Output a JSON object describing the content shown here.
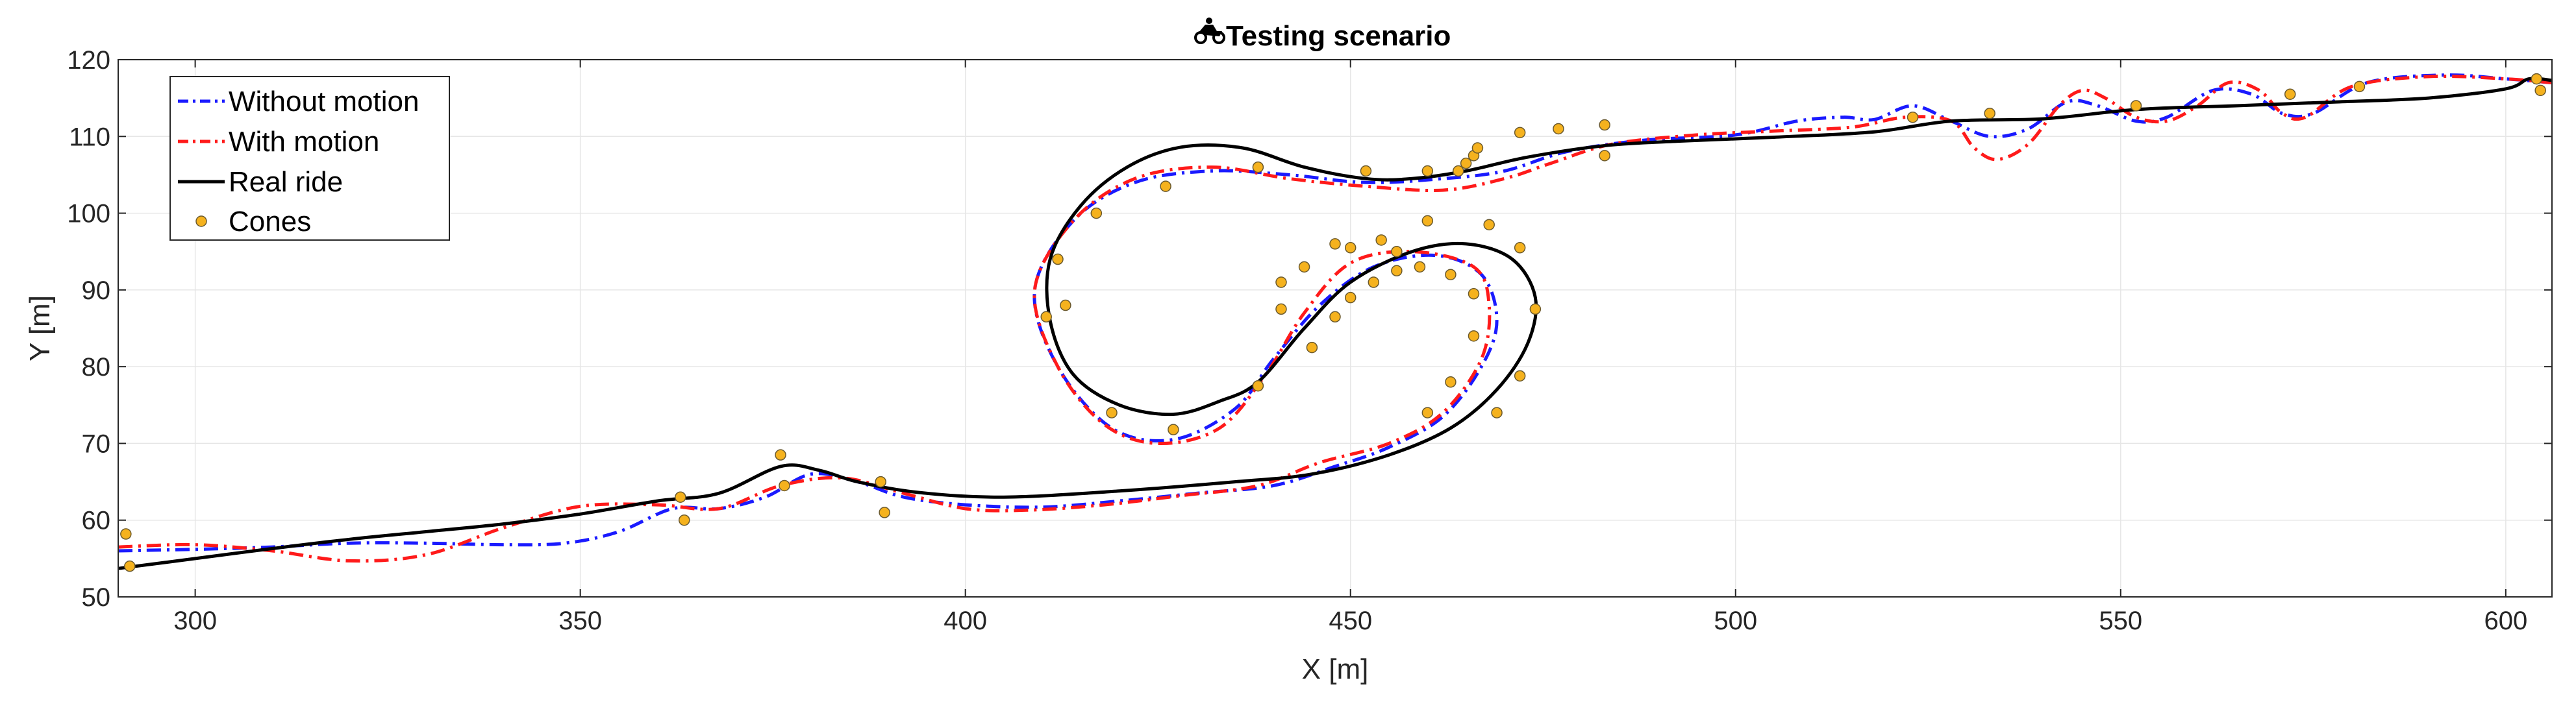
{
  "chart_data": {
    "type": "line",
    "title": "Testing scenario",
    "title_icon": "motorbike-icon",
    "xlabel": "X [m]",
    "ylabel": "Y [m]",
    "xlim": [
      290,
      606
    ],
    "ylim": [
      50,
      120
    ],
    "xticks": [
      300,
      350,
      400,
      450,
      500,
      550,
      600
    ],
    "yticks": [
      50,
      60,
      70,
      80,
      90,
      100,
      110,
      120
    ],
    "grid": true,
    "legend_position": "top-left",
    "series": [
      {
        "name": "Without motion",
        "color": "#1a1aff",
        "style": "dashdot",
        "points": [
          [
            290,
            56
          ],
          [
            300,
            56.2
          ],
          [
            310,
            56.5
          ],
          [
            320,
            57
          ],
          [
            330,
            57
          ],
          [
            340,
            56.8
          ],
          [
            348,
            57
          ],
          [
            355,
            58.5
          ],
          [
            362,
            61.5
          ],
          [
            368,
            61.5
          ],
          [
            374,
            63
          ],
          [
            380,
            66
          ],
          [
            386,
            65
          ],
          [
            392,
            63
          ],
          [
            400,
            62
          ],
          [
            410,
            61.7
          ],
          [
            420,
            62.5
          ],
          [
            430,
            63.5
          ],
          [
            440,
            64.5
          ],
          [
            448,
            67
          ],
          [
            455,
            69.5
          ],
          [
            462,
            73.5
          ],
          [
            467,
            80
          ],
          [
            469,
            86
          ],
          [
            467,
            92
          ],
          [
            461,
            94.5
          ],
          [
            453,
            93
          ],
          [
            446,
            88
          ],
          [
            440,
            81
          ],
          [
            435,
            74.5
          ],
          [
            427,
            70.5
          ],
          [
            419,
            72
          ],
          [
            412,
            80
          ],
          [
            409,
            90
          ],
          [
            414,
            99
          ],
          [
            422,
            104
          ],
          [
            432,
            105.5
          ],
          [
            442,
            105
          ],
          [
            452,
            104
          ],
          [
            462,
            104.5
          ],
          [
            470,
            105.5
          ],
          [
            478,
            108
          ],
          [
            488,
            109.5
          ],
          [
            500,
            110.2
          ],
          [
            508,
            112
          ],
          [
            514,
            112.5
          ],
          [
            518,
            112.2
          ],
          [
            523,
            114
          ],
          [
            528,
            112
          ],
          [
            533,
            110
          ],
          [
            538,
            111
          ],
          [
            543,
            114.5
          ],
          [
            547,
            114
          ],
          [
            552,
            112
          ],
          [
            556,
            112.5
          ],
          [
            562,
            116
          ],
          [
            567,
            115.5
          ],
          [
            571,
            113
          ],
          [
            575,
            113
          ],
          [
            582,
            117
          ],
          [
            592,
            118
          ],
          [
            600,
            117.5
          ],
          [
            606,
            117
          ]
        ]
      },
      {
        "name": "With motion",
        "color": "#ff1a1a",
        "style": "dashdot",
        "points": [
          [
            290,
            56.5
          ],
          [
            300,
            56.8
          ],
          [
            310,
            56
          ],
          [
            320,
            54.7
          ],
          [
            330,
            55.5
          ],
          [
            340,
            59
          ],
          [
            350,
            61.8
          ],
          [
            360,
            62
          ],
          [
            368,
            61.5
          ],
          [
            376,
            64.5
          ],
          [
            384,
            65.5
          ],
          [
            392,
            63.5
          ],
          [
            400,
            61.5
          ],
          [
            408,
            61.3
          ],
          [
            418,
            62
          ],
          [
            428,
            63.2
          ],
          [
            438,
            64.5
          ],
          [
            446,
            67.5
          ],
          [
            455,
            70
          ],
          [
            462,
            74
          ],
          [
            467,
            81
          ],
          [
            468,
            88
          ],
          [
            466,
            93
          ],
          [
            458,
            95
          ],
          [
            450,
            93.5
          ],
          [
            444,
            87
          ],
          [
            439,
            79
          ],
          [
            433,
            72
          ],
          [
            425,
            70
          ],
          [
            418,
            72.5
          ],
          [
            412,
            80
          ],
          [
            409,
            90
          ],
          [
            414,
            99
          ],
          [
            422,
            104.5
          ],
          [
            432,
            106
          ],
          [
            442,
            104.5
          ],
          [
            452,
            103.5
          ],
          [
            462,
            103
          ],
          [
            470,
            104.5
          ],
          [
            476,
            106.5
          ],
          [
            484,
            109
          ],
          [
            495,
            110.2
          ],
          [
            505,
            110.7
          ],
          [
            515,
            111.2
          ],
          [
            522,
            112.5
          ],
          [
            528,
            112
          ],
          [
            531,
            108.5
          ],
          [
            534,
            107
          ],
          [
            538,
            109
          ],
          [
            542,
            114
          ],
          [
            545,
            116
          ],
          [
            548,
            115
          ],
          [
            552,
            112.5
          ],
          [
            556,
            112
          ],
          [
            560,
            114
          ],
          [
            564,
            117
          ],
          [
            568,
            116
          ],
          [
            571,
            113
          ],
          [
            574,
            112.5
          ],
          [
            580,
            116.5
          ],
          [
            590,
            117.8
          ],
          [
            600,
            117.5
          ],
          [
            606,
            117
          ]
        ]
      },
      {
        "name": "Real ride",
        "color": "#000000",
        "style": "solid",
        "points": [
          [
            290,
            53.7
          ],
          [
            300,
            55
          ],
          [
            310,
            56.3
          ],
          [
            320,
            57.5
          ],
          [
            330,
            58.5
          ],
          [
            340,
            59.5
          ],
          [
            350,
            60.8
          ],
          [
            360,
            62.5
          ],
          [
            368,
            63.5
          ],
          [
            376,
            67
          ],
          [
            381,
            66.5
          ],
          [
            386,
            65
          ],
          [
            394,
            63.6
          ],
          [
            405,
            63
          ],
          [
            420,
            63.8
          ],
          [
            435,
            65
          ],
          [
            445,
            66
          ],
          [
            455,
            68.5
          ],
          [
            463,
            72
          ],
          [
            469,
            77
          ],
          [
            473,
            83
          ],
          [
            474,
            89
          ],
          [
            471,
            94
          ],
          [
            465,
            96
          ],
          [
            458,
            95
          ],
          [
            450,
            91
          ],
          [
            444,
            85
          ],
          [
            438,
            78
          ],
          [
            433,
            75.5
          ],
          [
            427,
            73.8
          ],
          [
            420,
            75
          ],
          [
            414,
            79
          ],
          [
            411,
            86
          ],
          [
            411,
            94
          ],
          [
            415,
            101
          ],
          [
            421,
            106
          ],
          [
            428,
            108.6
          ],
          [
            436,
            108.5
          ],
          [
            444,
            106
          ],
          [
            452,
            104.5
          ],
          [
            458,
            104.5
          ],
          [
            465,
            105.5
          ],
          [
            473,
            107.3
          ],
          [
            483,
            108.8
          ],
          [
            493,
            109.4
          ],
          [
            505,
            109.9
          ],
          [
            518,
            110.6
          ],
          [
            528,
            112
          ],
          [
            540,
            112.3
          ],
          [
            552,
            113.5
          ],
          [
            565,
            114
          ],
          [
            578,
            114.5
          ],
          [
            590,
            115
          ],
          [
            600,
            116.2
          ],
          [
            603,
            117.5
          ],
          [
            606,
            117.3
          ]
        ]
      },
      {
        "name": "Cones",
        "color": "#f5b21e",
        "style": "markers",
        "points": [
          [
            291,
            58.2
          ],
          [
            291.5,
            54
          ],
          [
            363,
            63
          ],
          [
            363.5,
            60
          ],
          [
            376,
            68.5
          ],
          [
            376.5,
            64.5
          ],
          [
            389,
            65
          ],
          [
            389.5,
            61
          ],
          [
            410.5,
            86.5
          ],
          [
            412,
            94
          ],
          [
            413,
            88
          ],
          [
            417,
            100
          ],
          [
            419,
            74
          ],
          [
            426,
            103.5
          ],
          [
            427,
            71.8
          ],
          [
            438,
            106
          ],
          [
            438,
            77.5
          ],
          [
            441,
            91
          ],
          [
            441,
            87.5
          ],
          [
            444,
            93
          ],
          [
            445,
            82.5
          ],
          [
            448,
            86.5
          ],
          [
            448,
            96
          ],
          [
            450,
            89
          ],
          [
            450,
            95.5
          ],
          [
            452,
            105.5
          ],
          [
            453,
            91
          ],
          [
            454,
            96.5
          ],
          [
            456,
            92.5
          ],
          [
            456,
            95
          ],
          [
            459,
            93
          ],
          [
            460,
            105.5
          ],
          [
            460,
            99
          ],
          [
            460,
            74
          ],
          [
            463,
            78
          ],
          [
            463,
            92
          ],
          [
            464,
            105.5
          ],
          [
            465,
            106.5
          ],
          [
            466,
            107.5
          ],
          [
            466,
            84
          ],
          [
            466,
            89.5
          ],
          [
            466.5,
            108.5
          ],
          [
            468,
            98.5
          ],
          [
            469,
            74
          ],
          [
            472,
            110.5
          ],
          [
            472,
            95.5
          ],
          [
            472,
            78.8
          ],
          [
            474,
            87.5
          ],
          [
            477,
            111
          ],
          [
            483,
            111.5
          ],
          [
            483,
            107.5
          ],
          [
            523,
            112.5
          ],
          [
            533,
            113
          ],
          [
            552,
            114
          ],
          [
            572,
            115.5
          ],
          [
            581,
            116.5
          ],
          [
            604,
            117.5
          ],
          [
            604.5,
            116
          ]
        ]
      }
    ]
  }
}
